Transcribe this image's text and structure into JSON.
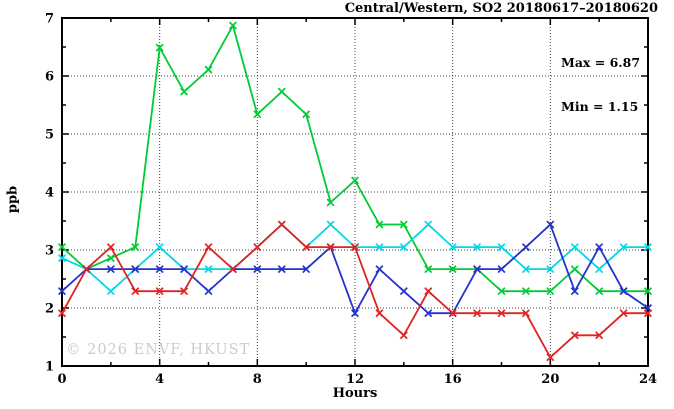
{
  "chart_data": {
    "type": "line",
    "title": "Central/Western, SO2 20180617–20180620",
    "xlabel": "Hours",
    "ylabel": "ppb",
    "annotations": {
      "max": "Max = 6.87",
      "min": "Min = 1.15"
    },
    "watermark": "© 2026 ENVF, HKUST",
    "xlim": [
      0,
      24
    ],
    "ylim": [
      1,
      7
    ],
    "xticks": [
      0,
      4,
      8,
      12,
      16,
      20,
      24
    ],
    "yticks": [
      1,
      2,
      3,
      4,
      5,
      6,
      7
    ],
    "x_minor_ticks": [
      2,
      6,
      10,
      14,
      18,
      22
    ],
    "y_minor_ticks": [
      1.5,
      2.5,
      3.5,
      4.5,
      5.5,
      6.5
    ],
    "grid_x": [
      4,
      8,
      12,
      16,
      20
    ],
    "grid_y": [
      2,
      3,
      4,
      5,
      6
    ],
    "grid": true,
    "legend_position": "none",
    "marker": "x",
    "x": [
      0,
      1,
      2,
      3,
      4,
      5,
      6,
      7,
      8,
      9,
      10,
      11,
      12,
      13,
      14,
      15,
      16,
      17,
      18,
      19,
      20,
      21,
      22,
      23,
      24
    ],
    "series": [
      {
        "name": "green-series",
        "color": "#00cc33",
        "values": [
          3.05,
          2.67,
          2.86,
          3.05,
          6.49,
          5.73,
          6.11,
          6.87,
          5.34,
          5.73,
          5.34,
          3.82,
          4.2,
          3.44,
          3.44,
          2.67,
          2.67,
          2.67,
          2.29,
          2.29,
          2.29,
          2.67,
          2.29,
          2.29,
          2.29
        ]
      },
      {
        "name": "cyan-series",
        "color": "#00d8e6",
        "values": [
          2.86,
          2.67,
          2.29,
          2.67,
          3.05,
          2.67,
          2.67,
          2.67,
          3.05,
          3.44,
          3.05,
          3.44,
          3.05,
          3.05,
          3.05,
          3.44,
          3.05,
          3.05,
          3.05,
          2.67,
          2.67,
          3.05,
          2.67,
          3.05,
          3.05
        ]
      },
      {
        "name": "blue-series",
        "color": "#2433cc",
        "values": [
          2.29,
          2.67,
          2.67,
          2.67,
          2.67,
          2.67,
          2.29,
          2.67,
          2.67,
          2.67,
          2.67,
          3.05,
          1.91,
          2.67,
          2.29,
          1.91,
          1.91,
          2.67,
          2.67,
          3.05,
          3.44,
          2.29,
          3.05,
          2.29,
          2.0
        ]
      },
      {
        "name": "red-series",
        "color": "#e02222",
        "values": [
          1.91,
          2.67,
          3.05,
          2.29,
          2.29,
          2.29,
          3.05,
          2.67,
          3.05,
          3.44,
          3.05,
          3.05,
          3.05,
          1.91,
          1.53,
          2.29,
          1.91,
          1.91,
          1.91,
          1.91,
          1.15,
          1.53,
          1.53,
          1.91,
          1.91
        ]
      }
    ]
  }
}
